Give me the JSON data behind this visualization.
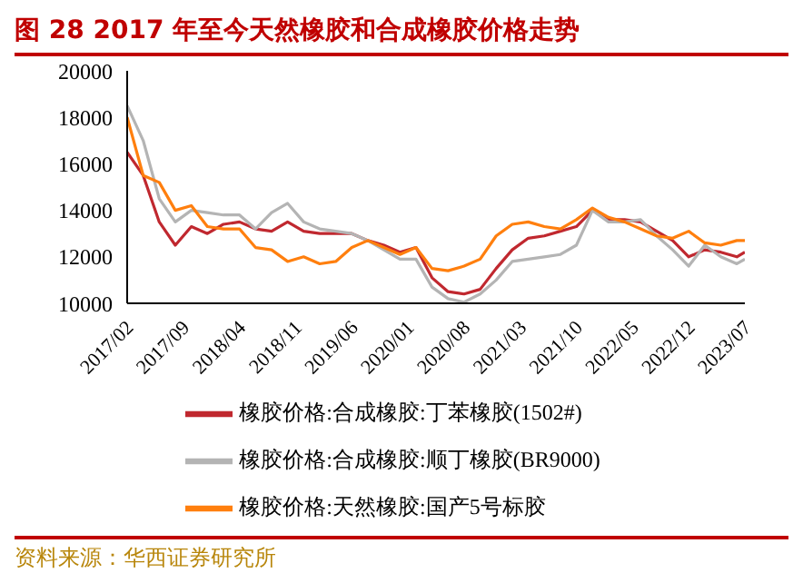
{
  "chart_data": {
    "type": "line",
    "title": "图 28 2017 年至今天然橡胶和合成橡胶价格走势",
    "x": [
      "2017-02",
      "2017-04",
      "2017-06",
      "2017-08",
      "2017-10",
      "2017-12",
      "2018-02",
      "2018-04",
      "2018-06",
      "2018-08",
      "2018-10",
      "2018-12",
      "2019-02",
      "2019-04",
      "2019-06",
      "2019-08",
      "2019-10",
      "2019-12",
      "2020-02",
      "2020-04",
      "2020-06",
      "2020-08",
      "2020-10",
      "2020-12",
      "2021-02",
      "2021-04",
      "2021-06",
      "2021-08",
      "2021-10",
      "2021-12",
      "2022-02",
      "2022-04",
      "2022-06",
      "2022-08",
      "2022-10",
      "2022-12",
      "2023-02",
      "2023-04",
      "2023-06",
      "2023-07"
    ],
    "series": [
      {
        "name": "橡胶价格:合成橡胶:丁苯橡胶(1502#)",
        "color": "#c0282f",
        "values": [
          16500,
          15500,
          13500,
          12500,
          13300,
          13000,
          13400,
          13500,
          13200,
          13100,
          13500,
          13100,
          13000,
          13000,
          13000,
          12700,
          12500,
          12200,
          12400,
          11100,
          10500,
          10400,
          10600,
          11500,
          12300,
          12800,
          12900,
          13100,
          13300,
          14000,
          13600,
          13600,
          13500,
          13100,
          12700,
          12000,
          12300,
          12200,
          12000,
          12200
        ]
      },
      {
        "name": "橡胶价格:合成橡胶:顺丁橡胶(BR9000)",
        "color": "#b4b4b4",
        "values": [
          18500,
          17000,
          14500,
          13500,
          14000,
          13900,
          13800,
          13800,
          13200,
          13900,
          14300,
          13500,
          13200,
          13100,
          13000,
          12700,
          12300,
          11900,
          11900,
          10700,
          10200,
          10050,
          10400,
          11000,
          11800,
          11900,
          12000,
          12100,
          12500,
          14000,
          13500,
          13500,
          13600,
          12900,
          12300,
          11600,
          12500,
          12000,
          11700,
          11900
        ]
      },
      {
        "name": "橡胶价格:天然橡胶:国产5号标胶",
        "color": "#ff7f0e",
        "values": [
          18000,
          15500,
          15200,
          14000,
          14200,
          13300,
          13200,
          13200,
          12400,
          12300,
          11800,
          12000,
          11700,
          11800,
          12400,
          12700,
          12400,
          12100,
          12400,
          11500,
          11400,
          11600,
          11900,
          12900,
          13400,
          13500,
          13300,
          13200,
          13600,
          14100,
          13700,
          13500,
          13200,
          12900,
          12800,
          13100,
          12600,
          12500,
          12700,
          12700
        ]
      }
    ],
    "xlim": [
      "2017-02",
      "2023-07"
    ],
    "xticks": [
      {
        "value": "2017-02",
        "label": "2017/02"
      },
      {
        "value": "2017-09",
        "label": "2017/09"
      },
      {
        "value": "2018-04",
        "label": "2018/04"
      },
      {
        "value": "2018-11",
        "label": "2018/11"
      },
      {
        "value": "2019-06",
        "label": "2019/06"
      },
      {
        "value": "2020-01",
        "label": "2020/01"
      },
      {
        "value": "2020-08",
        "label": "2020/08"
      },
      {
        "value": "2021-03",
        "label": "2021/03"
      },
      {
        "value": "2021-10",
        "label": "2021/10"
      },
      {
        "value": "2022-05",
        "label": "2022/05"
      },
      {
        "value": "2022-12",
        "label": "2022/12"
      },
      {
        "value": "2023-07",
        "label": "2023/07"
      }
    ],
    "ylim": [
      10000,
      20000
    ],
    "yticks": [
      10000,
      12000,
      14000,
      16000,
      18000,
      20000
    ],
    "legend": "bottom",
    "marker": "none",
    "line_style": "solid",
    "annotations": [
      "资料来源：华西证券研究所"
    ]
  }
}
